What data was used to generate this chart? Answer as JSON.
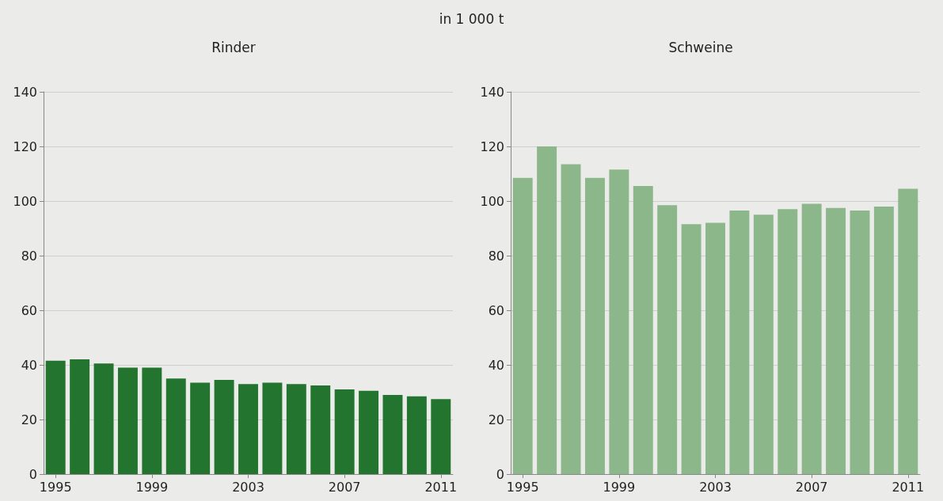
{
  "chart_data": [
    {
      "type": "bar",
      "title": "Rinder",
      "annotations": [
        "in 1 000 t"
      ],
      "categories": [
        "1995",
        null,
        null,
        null,
        "1999",
        null,
        null,
        null,
        "2003",
        null,
        null,
        null,
        "2007",
        null,
        null,
        null,
        "2011"
      ],
      "color": "#23742f",
      "values": [
        41.5,
        42,
        40.5,
        39,
        39,
        35,
        33.5,
        34.5,
        33,
        33.5,
        33,
        32.5,
        31,
        30.5,
        29,
        28.5,
        27.5
      ],
      "ylim": [
        0,
        140
      ],
      "yticks": [
        0,
        20,
        40,
        60,
        80,
        100,
        120,
        140
      ],
      "grid": "y"
    },
    {
      "type": "bar",
      "title": "Schweine",
      "categories": [
        "1995",
        null,
        null,
        null,
        "1999",
        null,
        null,
        null,
        "2003",
        null,
        null,
        null,
        "2007",
        null,
        null,
        null,
        "2011"
      ],
      "color": "#8bb78a",
      "values": [
        108.5,
        120,
        113.5,
        108.5,
        111.5,
        105.5,
        98.5,
        91.5,
        92,
        96.5,
        95,
        97,
        99,
        97.5,
        96.5,
        98,
        104.5
      ],
      "ylim": [
        0,
        140
      ],
      "yticks": [
        0,
        20,
        40,
        60,
        80,
        100,
        120,
        140
      ],
      "grid": "y"
    }
  ]
}
